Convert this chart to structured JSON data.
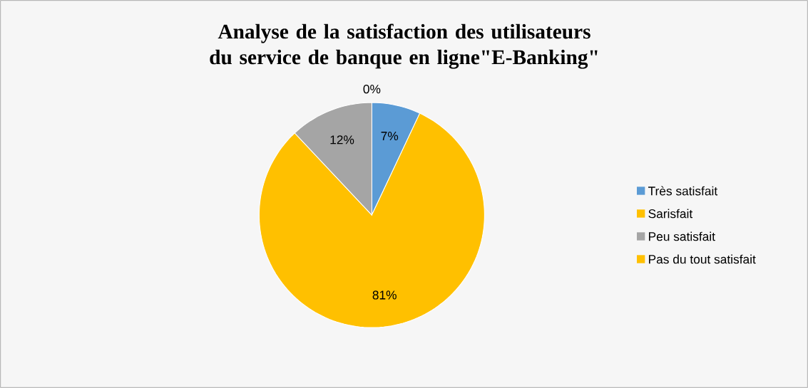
{
  "chart_data": {
    "type": "pie",
    "title": "Analyse de la satisfaction des utilisateurs du service de banque en ligne\"E-Banking\"",
    "categories": [
      "Très satisfait",
      "Sarisfait",
      "Peu satisfait",
      "Pas du tout satisfait"
    ],
    "values": [
      7,
      81,
      12,
      0
    ],
    "colors": [
      "#5b9bd5",
      "#ffc000",
      "#a5a5a5",
      "#ffc000"
    ],
    "value_labels": [
      "7%",
      "81%",
      "12%",
      "0%"
    ],
    "legend": "right"
  }
}
